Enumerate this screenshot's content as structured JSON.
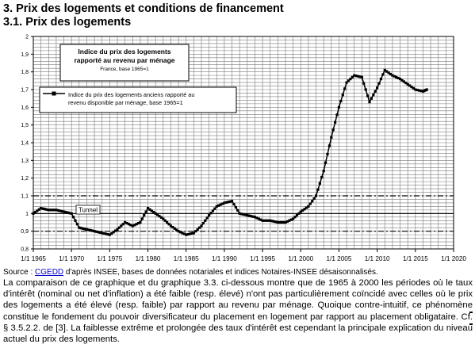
{
  "heading": "3. Prix des logements et conditions de financement",
  "subheading": "3.1. Prix des logements",
  "source": {
    "prefix": "Source : ",
    "link": "CGEDD",
    "suffix": " d'après INSEE, bases de données notariales et indices Notaires-INSEE désaisonnalisés."
  },
  "paragraph": "La comparaison de ce graphique et du graphique 3.3. ci-dessous montre que de 1965 à 2000 les périodes où le taux d'intérêt (nominal ou net d'inflation) a été faible (resp. élevé) n'ont pas particulièrement coïncidé avec celles où le prix des logements a été élevé (resp. faible) par rapport au revenu par ménage. Quoique contre-intuitif, ce phénomène constitue le fondement du pouvoir diversificateur du placement en logement par rapport au placement obligataire. Cf. § 3.5.2.2. de [3]. La faiblesse extrême et prolongée des taux d'intérêt est cependant la principale explication du niveau actuel du prix des logements.",
  "chart_data": {
    "type": "line",
    "title_box": {
      "line1": "Indice du prix des logements",
      "line2": "rapporté au revenu par ménage",
      "line3": "France, base 1965=1"
    },
    "legend": {
      "line1": "Indice du prix des logements anciens rapporté au",
      "line2": "revenu disponible par ménage, base 1965=1"
    },
    "annotation": "Tunnel",
    "x_ticks": [
      "1/1 1965",
      "1/1 1970",
      "1/1 1975",
      "1/1 1980",
      "1/1 1985",
      "1/1 1990",
      "1/1 1995",
      "1/1 2000",
      "1/1 2005",
      "1/1 2010",
      "1/1 2015",
      "1/1 2020"
    ],
    "y_ticks": [
      "0,8",
      "0,9",
      "1",
      "1,1",
      "1,2",
      "1,3",
      "1,4",
      "1,5",
      "1,6",
      "1,7",
      "1,8",
      "1,9",
      "2"
    ],
    "xlim": [
      1965,
      2020
    ],
    "ylim": [
      0.8,
      2.0
    ],
    "grid": true,
    "reference_lines": [
      {
        "y": 1.1,
        "style": "dash-dot"
      },
      {
        "y": 1.0,
        "style": "solid"
      },
      {
        "y": 0.9,
        "style": "dash-dot"
      }
    ],
    "series": [
      {
        "name": "Indice du prix des logements anciens rapporté au revenu disponible par ménage, base 1965=1",
        "x": [
          1965,
          1966,
          1967,
          1968,
          1969,
          1970,
          1971,
          1972,
          1973,
          1974,
          1975,
          1976,
          1977,
          1978,
          1979,
          1980,
          1981,
          1982,
          1983,
          1984,
          1985,
          1986,
          1987,
          1988,
          1989,
          1990,
          1991,
          1992,
          1993,
          1994,
          1995,
          1996,
          1997,
          1998,
          1999,
          2000,
          2001,
          2002,
          2003,
          2004,
          2005,
          2006,
          2007,
          2008,
          2009,
          2010,
          2011,
          2012,
          2013,
          2014,
          2015,
          2016,
          2016.5
        ],
        "y": [
          1.0,
          1.03,
          1.02,
          1.02,
          1.01,
          1.0,
          0.92,
          0.91,
          0.9,
          0.89,
          0.88,
          0.91,
          0.95,
          0.93,
          0.95,
          1.03,
          1.0,
          0.97,
          0.93,
          0.9,
          0.88,
          0.89,
          0.93,
          0.99,
          1.04,
          1.06,
          1.07,
          1.0,
          0.99,
          0.98,
          0.96,
          0.96,
          0.95,
          0.95,
          0.97,
          1.01,
          1.04,
          1.1,
          1.24,
          1.43,
          1.6,
          1.74,
          1.78,
          1.77,
          1.63,
          1.71,
          1.81,
          1.78,
          1.76,
          1.73,
          1.7,
          1.69,
          1.7
        ]
      }
    ]
  }
}
